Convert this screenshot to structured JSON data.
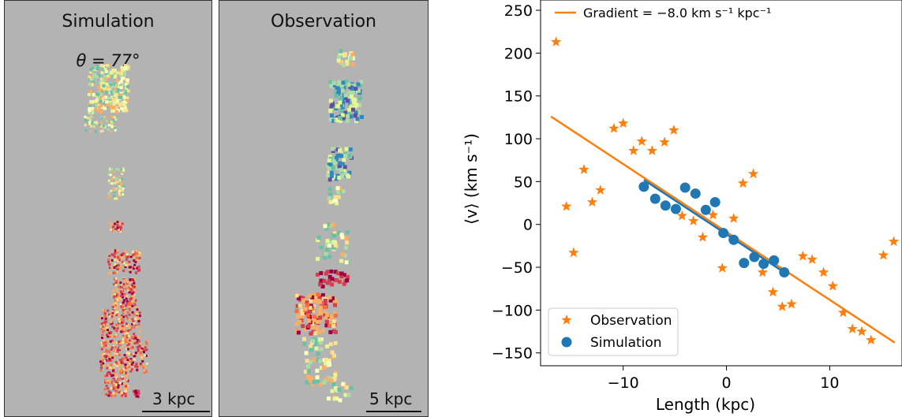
{
  "panels": {
    "simulation": {
      "title": "Simulation",
      "angle_label": "θ = 77°",
      "scale_label": "3 kpc"
    },
    "observation": {
      "title": "Observation",
      "scale_label": "5 kpc"
    }
  },
  "colors": {
    "panel_bg": "#b3b3b3",
    "observation": "#ff7f0e",
    "simulation": "#1f77b4"
  },
  "chart_data": {
    "type": "scatter",
    "xlabel": "Length (kpc)",
    "ylabel": "⟨v⟩ (km s⁻¹)",
    "xlim": [
      -18,
      17
    ],
    "ylim": [
      -165,
      262
    ],
    "xticks": [
      -10,
      0,
      10
    ],
    "yticks": [
      -150,
      -100,
      -50,
      0,
      50,
      100,
      150,
      200,
      250
    ],
    "legend_top": "Gradient = −8.0 km s⁻¹ kpc⁻¹",
    "series": [
      {
        "name": "Observation",
        "marker": "star",
        "color": "#ff7f0e",
        "points": [
          [
            -16.5,
            213
          ],
          [
            -15.5,
            21
          ],
          [
            -14.8,
            -33
          ],
          [
            -13.8,
            64
          ],
          [
            -13.0,
            26
          ],
          [
            -12.2,
            40
          ],
          [
            -10.9,
            112
          ],
          [
            -10.0,
            118
          ],
          [
            -9.0,
            86
          ],
          [
            -8.2,
            97
          ],
          [
            -7.2,
            86
          ],
          [
            -6.0,
            96
          ],
          [
            -5.1,
            110
          ],
          [
            -4.3,
            10
          ],
          [
            -3.2,
            4
          ],
          [
            -2.3,
            -15
          ],
          [
            -1.3,
            11
          ],
          [
            -0.4,
            -51
          ],
          [
            0.7,
            7
          ],
          [
            1.6,
            48
          ],
          [
            2.6,
            59
          ],
          [
            3.5,
            -56
          ],
          [
            4.5,
            -79
          ],
          [
            5.4,
            -96
          ],
          [
            6.3,
            -93
          ],
          [
            7.4,
            -37
          ],
          [
            8.3,
            -41
          ],
          [
            9.4,
            -56
          ],
          [
            10.3,
            -72
          ],
          [
            11.3,
            -103
          ],
          [
            12.2,
            -122
          ],
          [
            13.1,
            -125
          ],
          [
            14.0,
            -135
          ],
          [
            15.2,
            -36
          ],
          [
            16.2,
            -20
          ]
        ]
      },
      {
        "name": "Simulation",
        "marker": "circle",
        "color": "#1f77b4",
        "points": [
          [
            -8.0,
            44
          ],
          [
            -6.9,
            30
          ],
          [
            -5.9,
            22
          ],
          [
            -4.9,
            18
          ],
          [
            -4.0,
            43
          ],
          [
            -3.0,
            36
          ],
          [
            -2.0,
            17
          ],
          [
            -1.1,
            26
          ],
          [
            -0.3,
            -10
          ],
          [
            0.7,
            -18
          ],
          [
            1.7,
            -45
          ],
          [
            2.7,
            -38
          ],
          [
            3.6,
            -46
          ],
          [
            4.6,
            -42
          ],
          [
            5.6,
            -56
          ]
        ]
      }
    ],
    "fit_lines": [
      {
        "series": "Observation",
        "color": "#ff7f0e",
        "x": [
          -17.0,
          16.3
        ],
        "y": [
          126,
          -138
        ]
      },
      {
        "series": "Simulation",
        "color": "#1f77b4",
        "x": [
          -8.0,
          5.6
        ],
        "y": [
          52,
          -56
        ]
      }
    ]
  }
}
